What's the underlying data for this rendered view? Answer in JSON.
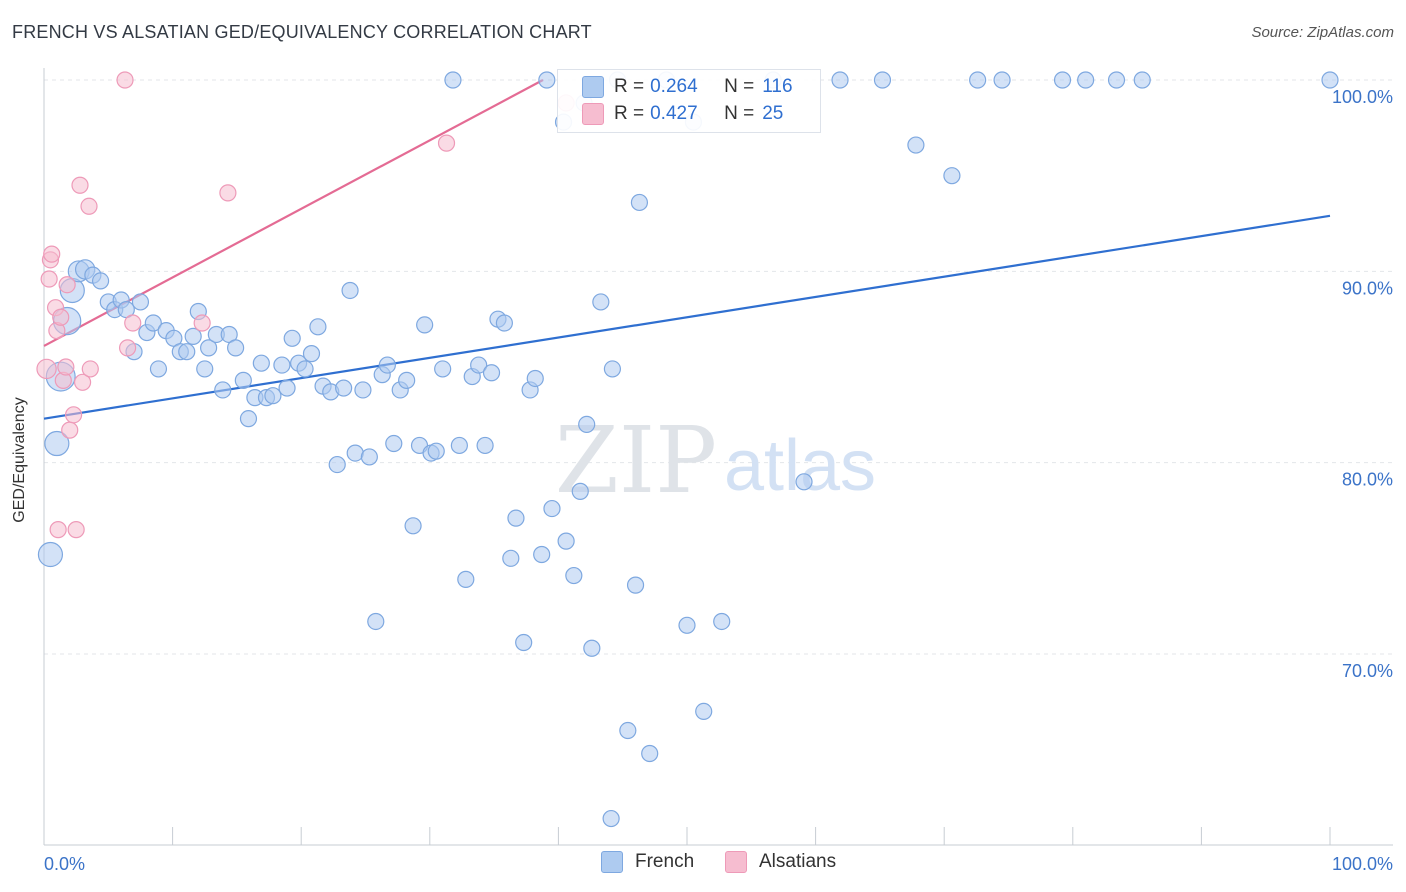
{
  "title": "FRENCH VS ALSATIAN GED/EQUIVALENCY CORRELATION CHART",
  "source": "Source: ZipAtlas.com",
  "watermark": {
    "zip": "ZIP",
    "atlas": "atlas"
  },
  "legend_top": {
    "french": {
      "r_label": "R =",
      "r_value": "0.264",
      "n_label": "N =",
      "n_value": "116"
    },
    "alsatians": {
      "r_label": "R =",
      "r_value": "0.427",
      "n_label": "N =",
      "n_value": "25"
    }
  },
  "legend_bottom": {
    "french": "French",
    "alsatians": "Alsatians"
  },
  "colors": {
    "french_fill": "#aecbf0",
    "french_stroke": "#7ea8e0",
    "french_line": "#2f6fd0",
    "alsatian_fill": "#f6bdd0",
    "alsatian_stroke": "#ee9ab8",
    "alsatian_line": "#e46b94",
    "tick_text": "#3b73c8",
    "grid": "#e3e6ea"
  },
  "chart_data": {
    "type": "scatter",
    "title": "FRENCH VS ALSATIAN GED/EQUIVALENCY CORRELATION CHART",
    "xlabel": "",
    "ylabel": "GED/Equivalency",
    "xlim": [
      0,
      100
    ],
    "ylim": [
      60,
      101.5
    ],
    "x_tick_labels": [
      {
        "x": 0,
        "label": "0.0%"
      },
      {
        "x": 100,
        "label": "100.0%"
      }
    ],
    "y_tick_labels": [
      {
        "y": 70,
        "label": "70.0%"
      },
      {
        "y": 80,
        "label": "80.0%"
      },
      {
        "y": 90,
        "label": "90.0%"
      },
      {
        "y": 100,
        "label": "100.0%"
      }
    ],
    "series": [
      {
        "name": "French",
        "trend": {
          "x": [
            0,
            100
          ],
          "y": [
            82.3,
            92.9
          ]
        },
        "points": [
          [
            0.5,
            75.2,
            1.5
          ],
          [
            1.0,
            81.0,
            1.5
          ],
          [
            1.3,
            84.5,
            1.8
          ],
          [
            1.8,
            87.4,
            1.7
          ],
          [
            2.2,
            89.0,
            1.5
          ],
          [
            2.7,
            90.0,
            1.3
          ],
          [
            3.2,
            90.1,
            1.2
          ],
          [
            3.8,
            89.8,
            1.0
          ],
          [
            4.4,
            89.5,
            1.0
          ],
          [
            5.0,
            88.4,
            1
          ],
          [
            5.5,
            88.0,
            1
          ],
          [
            6.0,
            88.5,
            1
          ],
          [
            6.4,
            88.0,
            1
          ],
          [
            7.0,
            85.8,
            1
          ],
          [
            7.5,
            88.4,
            1
          ],
          [
            8.0,
            86.8,
            1
          ],
          [
            8.5,
            87.3,
            1
          ],
          [
            8.9,
            84.9,
            1
          ],
          [
            9.5,
            86.9,
            1
          ],
          [
            10.1,
            86.5,
            1
          ],
          [
            10.6,
            85.8,
            1
          ],
          [
            11.1,
            85.8,
            1
          ],
          [
            11.6,
            86.6,
            1
          ],
          [
            12.0,
            87.9,
            1
          ],
          [
            12.5,
            84.9,
            1
          ],
          [
            12.8,
            86.0,
            1
          ],
          [
            13.4,
            86.7,
            1
          ],
          [
            13.9,
            83.8,
            1
          ],
          [
            14.4,
            86.7,
            1
          ],
          [
            14.9,
            86.0,
            1
          ],
          [
            15.5,
            84.3,
            1
          ],
          [
            15.9,
            82.3,
            1
          ],
          [
            16.4,
            83.4,
            1
          ],
          [
            16.9,
            85.2,
            1
          ],
          [
            17.3,
            83.4,
            1
          ],
          [
            17.8,
            83.5,
            1
          ],
          [
            18.5,
            85.1,
            1
          ],
          [
            18.9,
            83.9,
            1
          ],
          [
            19.3,
            86.5,
            1
          ],
          [
            19.8,
            85.2,
            1
          ],
          [
            20.3,
            84.9,
            1
          ],
          [
            20.8,
            85.7,
            1
          ],
          [
            21.3,
            87.1,
            1
          ],
          [
            21.7,
            84.0,
            1
          ],
          [
            22.3,
            83.7,
            1
          ],
          [
            22.8,
            79.9,
            1
          ],
          [
            23.3,
            83.9,
            1
          ],
          [
            23.8,
            89.0,
            1
          ],
          [
            24.2,
            80.5,
            1
          ],
          [
            24.8,
            83.8,
            1
          ],
          [
            25.3,
            80.3,
            1
          ],
          [
            25.8,
            71.7,
            1
          ],
          [
            26.3,
            84.6,
            1
          ],
          [
            26.7,
            85.1,
            1
          ],
          [
            27.2,
            81.0,
            1
          ],
          [
            27.7,
            83.8,
            1
          ],
          [
            28.2,
            84.3,
            1
          ],
          [
            28.7,
            76.7,
            1
          ],
          [
            29.2,
            80.9,
            1
          ],
          [
            29.6,
            87.2,
            1
          ],
          [
            30.1,
            80.5,
            1
          ],
          [
            30.5,
            80.6,
            1
          ],
          [
            31.0,
            84.9,
            1
          ],
          [
            31.8,
            100,
            1
          ],
          [
            32.3,
            80.9,
            1
          ],
          [
            32.8,
            73.9,
            1
          ],
          [
            33.3,
            84.5,
            1
          ],
          [
            33.8,
            85.1,
            1
          ],
          [
            34.3,
            80.9,
            1
          ],
          [
            34.8,
            84.7,
            1
          ],
          [
            35.3,
            87.5,
            1
          ],
          [
            35.8,
            87.3,
            1
          ],
          [
            36.3,
            75.0,
            1
          ],
          [
            36.7,
            77.1,
            1
          ],
          [
            37.3,
            70.6,
            1
          ],
          [
            37.8,
            83.8,
            1
          ],
          [
            38.2,
            84.4,
            1
          ],
          [
            38.7,
            75.2,
            1
          ],
          [
            39.1,
            100,
            1
          ],
          [
            39.5,
            77.6,
            1
          ],
          [
            40.4,
            97.8,
            1
          ],
          [
            40.6,
            75.9,
            1
          ],
          [
            41.2,
            74.1,
            1
          ],
          [
            41.7,
            78.5,
            1
          ],
          [
            42.0,
            98.8,
            1
          ],
          [
            42.2,
            82.0,
            1
          ],
          [
            42.6,
            70.3,
            1
          ],
          [
            43.3,
            88.4,
            1
          ],
          [
            44.1,
            61.4,
            1
          ],
          [
            44.2,
            84.9,
            1
          ],
          [
            44.6,
            100,
            1
          ],
          [
            45.4,
            66.0,
            1
          ],
          [
            46.0,
            73.6,
            1
          ],
          [
            46.3,
            93.6,
            1
          ],
          [
            47.1,
            64.8,
            1
          ],
          [
            48.4,
            100,
            1
          ],
          [
            50.0,
            71.5,
            1
          ],
          [
            50.5,
            97.8,
            1
          ],
          [
            51.3,
            67.0,
            1
          ],
          [
            52.7,
            71.7,
            1
          ],
          [
            56.7,
            100,
            1
          ],
          [
            59.1,
            79.0,
            1
          ],
          [
            61.9,
            100,
            1
          ],
          [
            65.2,
            100,
            1
          ],
          [
            67.8,
            96.6,
            1
          ],
          [
            70.6,
            95.0,
            1
          ],
          [
            72.6,
            100,
            1
          ],
          [
            74.5,
            100,
            1
          ],
          [
            79.2,
            100,
            1
          ],
          [
            81.0,
            100,
            1
          ],
          [
            83.4,
            100,
            1
          ],
          [
            85.4,
            100,
            1
          ],
          [
            100,
            100,
            1
          ]
        ]
      },
      {
        "name": "Alsatians",
        "trend": {
          "x": [
            0,
            38.8
          ],
          "y": [
            86.1,
            100
          ]
        },
        "points": [
          [
            0.2,
            84.9,
            1.2
          ],
          [
            0.4,
            89.6,
            1
          ],
          [
            0.5,
            90.6,
            1
          ],
          [
            0.6,
            90.9,
            1
          ],
          [
            0.9,
            88.1,
            1
          ],
          [
            1.0,
            86.9,
            1
          ],
          [
            1.1,
            76.5,
            1
          ],
          [
            1.3,
            87.6,
            1
          ],
          [
            1.5,
            84.3,
            1
          ],
          [
            1.7,
            85.0,
            1
          ],
          [
            1.8,
            89.3,
            1
          ],
          [
            2.0,
            81.7,
            1
          ],
          [
            2.3,
            82.5,
            1
          ],
          [
            2.5,
            76.5,
            1
          ],
          [
            2.8,
            94.5,
            1
          ],
          [
            3.0,
            84.2,
            1
          ],
          [
            3.5,
            93.4,
            1
          ],
          [
            3.6,
            84.9,
            1
          ],
          [
            6.3,
            100,
            1
          ],
          [
            6.5,
            86.0,
            1
          ],
          [
            6.9,
            87.3,
            1
          ],
          [
            12.3,
            87.3,
            1
          ],
          [
            14.3,
            94.1,
            1
          ],
          [
            31.3,
            96.7,
            1
          ],
          [
            40.6,
            98.8,
            1
          ]
        ]
      }
    ]
  }
}
